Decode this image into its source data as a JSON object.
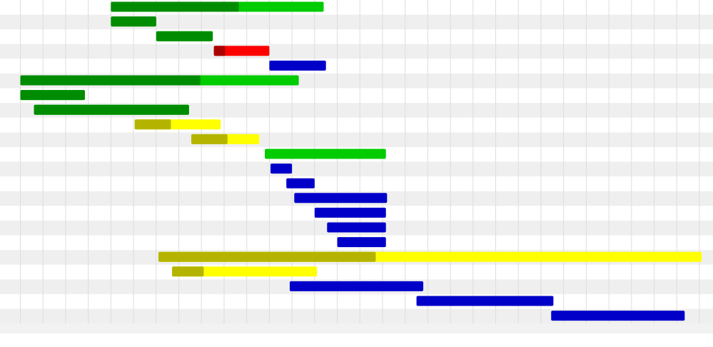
{
  "chart_data": {
    "type": "gantt",
    "xlim": [
      -0.9,
      30.6
    ],
    "xticks": [
      0,
      1,
      2,
      3,
      4,
      5,
      6,
      7,
      8,
      9,
      10,
      11,
      12,
      13,
      14,
      15,
      16,
      17,
      18,
      19,
      20,
      21,
      22,
      23,
      24,
      25,
      26,
      27,
      28,
      29,
      30
    ],
    "grid": true,
    "tasks": [
      {
        "start": 4.0,
        "end": 13.4,
        "done": 9.65,
        "color": "#00cc00",
        "done_color": "#008c00"
      },
      {
        "start": 4.0,
        "end": 6.0,
        "done": 6.0,
        "color": "#00cc00",
        "done_color": "#008c00"
      },
      {
        "start": 6.0,
        "end": 8.5,
        "done": 8.5,
        "color": "#00cc00",
        "done_color": "#008c00"
      },
      {
        "start": 8.55,
        "end": 11.0,
        "done": 9.05,
        "color": "#ff0000",
        "done_color": "#aa0000"
      },
      {
        "start": 11.0,
        "end": 13.5,
        "done": 11.0,
        "color": "#0000c8",
        "done_color": "#0000c8"
      },
      {
        "start": 0.0,
        "end": 12.3,
        "done": 7.95,
        "color": "#00cc00",
        "done_color": "#008c00"
      },
      {
        "start": 0.0,
        "end": 2.85,
        "done": 2.85,
        "color": "#00cc00",
        "done_color": "#008c00"
      },
      {
        "start": 0.6,
        "end": 7.45,
        "done": 7.45,
        "color": "#00cc00",
        "done_color": "#008c00"
      },
      {
        "start": 5.05,
        "end": 8.85,
        "done": 6.65,
        "color": "#ffff00",
        "done_color": "#b4b400"
      },
      {
        "start": 7.55,
        "end": 10.55,
        "done": 9.15,
        "color": "#ffff00",
        "done_color": "#b4b400"
      },
      {
        "start": 10.8,
        "end": 16.15,
        "done": 10.8,
        "color": "#00cc00",
        "done_color": "#008c00"
      },
      {
        "start": 11.05,
        "end": 12.0,
        "done": 11.05,
        "color": "#0000c8",
        "done_color": "#0000c8"
      },
      {
        "start": 11.75,
        "end": 13.0,
        "done": 11.75,
        "color": "#0000c8",
        "done_color": "#0000c8"
      },
      {
        "start": 12.1,
        "end": 16.2,
        "done": 12.1,
        "color": "#0000c8",
        "done_color": "#0000c8"
      },
      {
        "start": 13.0,
        "end": 16.15,
        "done": 13.0,
        "color": "#0000c8",
        "done_color": "#0000c8"
      },
      {
        "start": 13.55,
        "end": 16.15,
        "done": 13.55,
        "color": "#0000c8",
        "done_color": "#0000c8"
      },
      {
        "start": 14.0,
        "end": 16.15,
        "done": 14.0,
        "color": "#0000c8",
        "done_color": "#0000c8"
      },
      {
        "start": 6.1,
        "end": 30.1,
        "done": 15.7,
        "color": "#ffff00",
        "done_color": "#b4b400"
      },
      {
        "start": 6.7,
        "end": 13.1,
        "done": 8.1,
        "color": "#ffff00",
        "done_color": "#b4b400"
      },
      {
        "start": 11.9,
        "end": 17.8,
        "done": 11.9,
        "color": "#0000c8",
        "done_color": "#0000c8"
      },
      {
        "start": 17.5,
        "end": 23.55,
        "done": 17.5,
        "color": "#0000c8",
        "done_color": "#0000c8"
      },
      {
        "start": 23.45,
        "end": 29.35,
        "done": 23.45,
        "color": "#0000c8",
        "done_color": "#0000c8"
      }
    ]
  }
}
